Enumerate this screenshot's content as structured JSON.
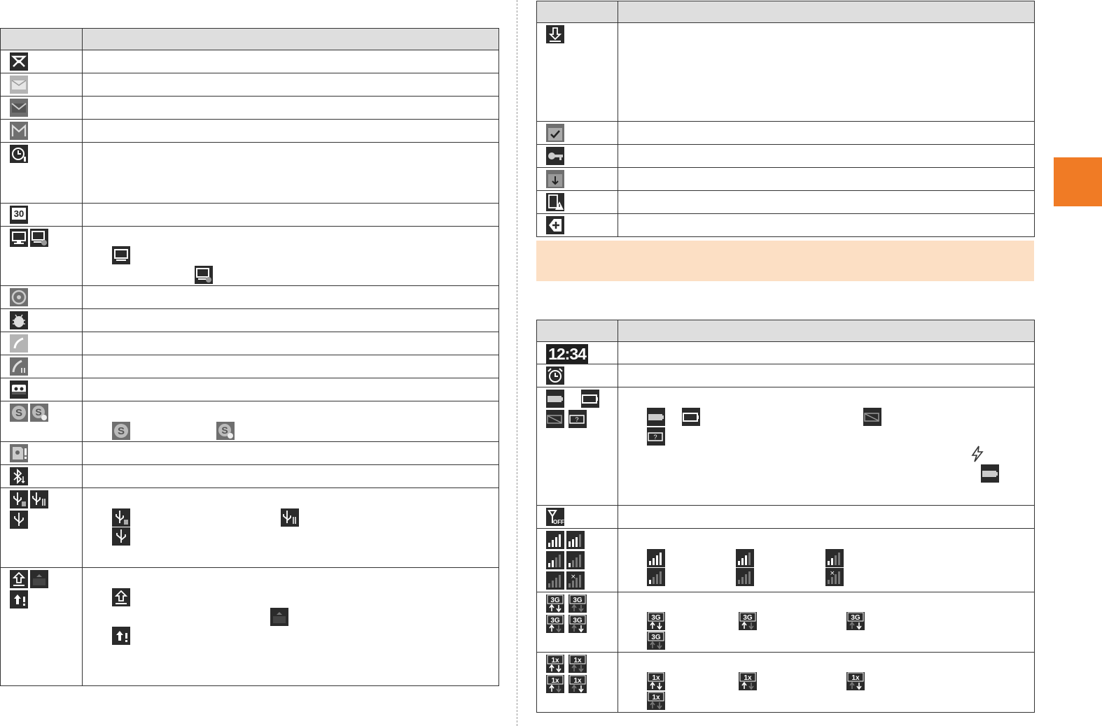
{
  "page": {
    "accent_tab_color": "#f07b25",
    "section_bar_color": "#fcdfc4",
    "header_color": "#dedede"
  },
  "tables": {
    "left": {
      "columns": [
        "",
        ""
      ],
      "rows": [
        {
          "icons": [
            "mail-missed-icon"
          ],
          "description": ""
        },
        {
          "icons": [
            "mail-envelope-light-icon"
          ],
          "description": ""
        },
        {
          "icons": [
            "mail-envelope-icon"
          ],
          "description": ""
        },
        {
          "icons": [
            "gmail-icon"
          ],
          "description": ""
        },
        {
          "icons": [
            "alarm-alert-icon"
          ],
          "description": ""
        },
        {
          "icons": [
            "calendar-icon"
          ],
          "description": "",
          "calendar_day": "30"
        },
        {
          "icons": [
            "pc-link-icon",
            "pc-link-badge-icon"
          ],
          "description": ""
        },
        {
          "icons": [
            "media-disc-icon"
          ],
          "description": ""
        },
        {
          "icons": [
            "android-debug-icon"
          ],
          "description": ""
        },
        {
          "icons": [
            "call-icon"
          ],
          "description": ""
        },
        {
          "icons": [
            "call-hold-icon"
          ],
          "description": ""
        },
        {
          "icons": [
            "voicemail-icon"
          ],
          "description": ""
        },
        {
          "icons": [
            "skype-icon",
            "skype-status-icon"
          ],
          "description": ""
        },
        {
          "icons": [
            "sd-card-alert-icon"
          ],
          "description": ""
        },
        {
          "icons": [
            "bluetooth-transfer-icon"
          ],
          "description": ""
        },
        {
          "icons": [
            "usb-storage-icon",
            "usb-data-icon",
            "usb-icon"
          ],
          "description": ""
        },
        {
          "icons": [
            "upload-icon",
            "upload-done-icon",
            "upload-error-icon"
          ],
          "description": ""
        }
      ]
    },
    "right_top": {
      "columns": [
        "",
        ""
      ],
      "rows": [
        {
          "icons": [
            "download-icon"
          ],
          "description": ""
        },
        {
          "icons": [
            "install-complete-icon"
          ],
          "description": ""
        },
        {
          "icons": [
            "key-icon"
          ],
          "description": ""
        },
        {
          "icons": [
            "update-icon"
          ],
          "description": ""
        },
        {
          "icons": [
            "device-warning-icon"
          ],
          "description": ""
        },
        {
          "icons": [
            "add-icon"
          ],
          "description": ""
        }
      ]
    },
    "right_bottom": {
      "columns": [
        "",
        ""
      ],
      "rows": [
        {
          "icons": [
            "clock-icon"
          ],
          "description": "",
          "clock_text": "12:34"
        },
        {
          "icons": [
            "alarm-icon"
          ],
          "description": ""
        },
        {
          "icons": [
            "battery-full-icon",
            "battery-empty-icon",
            "battery-missing-icon",
            "battery-unknown-icon"
          ],
          "description": ""
        },
        {
          "icons": [
            "signal-off-icon"
          ],
          "description": ""
        },
        {
          "icons": [
            "signal-strength-icon"
          ],
          "description": ""
        },
        {
          "icons": [
            "3g-data-icon"
          ],
          "description": "",
          "badge_text": "3G"
        },
        {
          "icons": [
            "1x-data-icon"
          ],
          "description": "",
          "badge_text": "1x"
        }
      ]
    }
  },
  "battery_unknown_mark": "?",
  "signal_off_text": "OFF",
  "no_signal_mark": "×"
}
